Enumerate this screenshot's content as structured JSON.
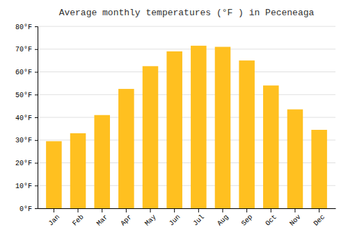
{
  "chart_data": {
    "type": "bar",
    "title": "Average monthly temperatures (°F ) in Peceneaga",
    "categories": [
      "Jan",
      "Feb",
      "Mar",
      "Apr",
      "May",
      "Jun",
      "Jul",
      "Aug",
      "Sep",
      "Oct",
      "Nov",
      "Dec"
    ],
    "values": [
      29.5,
      33.0,
      41.0,
      52.5,
      62.5,
      69.0,
      71.5,
      71.0,
      65.0,
      54.0,
      43.5,
      34.5
    ],
    "color": "#FFC020",
    "ylim": [
      0,
      80
    ],
    "yticks": [
      {
        "value": 0,
        "label": "0°F"
      },
      {
        "value": 10,
        "label": "10°F"
      },
      {
        "value": 20,
        "label": "20°F"
      },
      {
        "value": 30,
        "label": "30°F"
      },
      {
        "value": 40,
        "label": "40°F"
      },
      {
        "value": 50,
        "label": "50°F"
      },
      {
        "value": 60,
        "label": "60°F"
      },
      {
        "value": 70,
        "label": "70°F"
      },
      {
        "value": 80,
        "label": "80°F"
      }
    ],
    "grid": true
  }
}
